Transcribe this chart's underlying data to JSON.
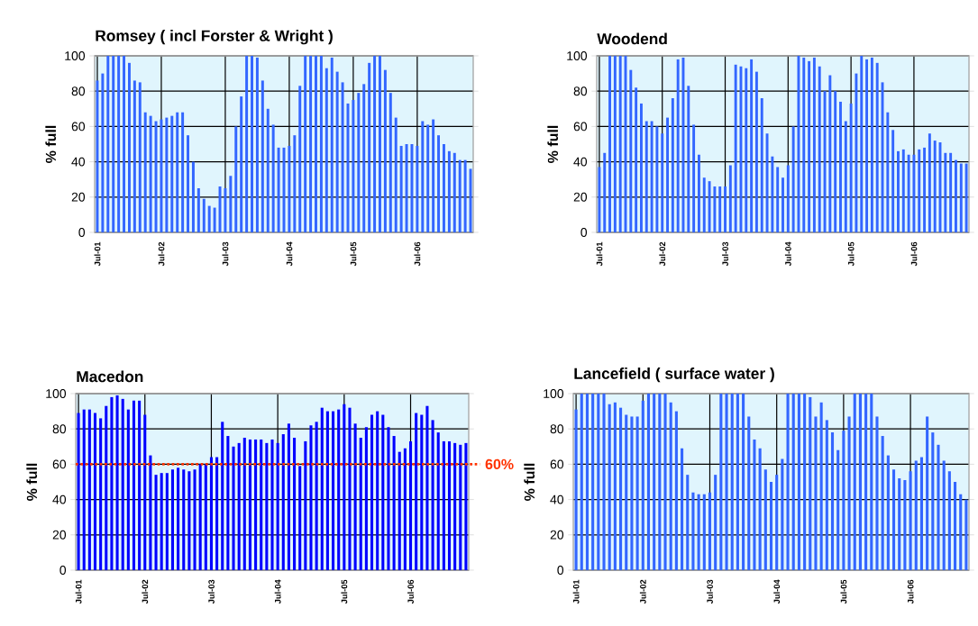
{
  "chart_data": [
    {
      "type": "bar",
      "title": "Romsey ( incl Forster & Wright )",
      "ylabel": "% full",
      "color": "#3366ff",
      "grid": true,
      "ylim": [
        0,
        100
      ],
      "yticks": [
        0,
        20,
        40,
        60,
        80,
        100
      ],
      "categories": [
        "Jul-01",
        null,
        null,
        null,
        null,
        null,
        null,
        null,
        null,
        null,
        null,
        null,
        "Jul-02",
        null,
        null,
        null,
        null,
        null,
        null,
        null,
        null,
        null,
        null,
        null,
        "Jul-03",
        null,
        null,
        null,
        null,
        null,
        null,
        null,
        null,
        null,
        null,
        null,
        "Jul-04",
        null,
        null,
        null,
        null,
        null,
        null,
        null,
        null,
        null,
        null,
        null,
        "Jul-05",
        null,
        null,
        null,
        null,
        null,
        null,
        null,
        null,
        null,
        null,
        null,
        "Jul-06",
        null,
        null,
        null,
        null,
        null,
        null,
        null,
        null,
        null,
        null
      ],
      "values": [
        86,
        90,
        100,
        100,
        100,
        100,
        96,
        86,
        85,
        68,
        66,
        63,
        64,
        65,
        66,
        68,
        68,
        55,
        40,
        25,
        19,
        15,
        14,
        26,
        25,
        32,
        60,
        77,
        100,
        100,
        99,
        86,
        70,
        61,
        48,
        48,
        49,
        55,
        83,
        100,
        100,
        100,
        100,
        93,
        99,
        91,
        85,
        73,
        75,
        79,
        84,
        96,
        100,
        100,
        92,
        79,
        65,
        49,
        50,
        50,
        49,
        63,
        61,
        64,
        55,
        50,
        46,
        45,
        41,
        41,
        36
      ]
    },
    {
      "type": "bar",
      "title": "Woodend",
      "ylabel": "% full",
      "color": "#3366ff",
      "grid": true,
      "ylim": [
        0,
        100
      ],
      "yticks": [
        0,
        20,
        40,
        60,
        80,
        100
      ],
      "categories": [
        "Jul-01",
        null,
        null,
        null,
        null,
        null,
        null,
        null,
        null,
        null,
        null,
        null,
        "Jul-02",
        null,
        null,
        null,
        null,
        null,
        null,
        null,
        null,
        null,
        null,
        null,
        "Jul-03",
        null,
        null,
        null,
        null,
        null,
        null,
        null,
        null,
        null,
        null,
        null,
        "Jul-04",
        null,
        null,
        null,
        null,
        null,
        null,
        null,
        null,
        null,
        null,
        null,
        "Jul-05",
        null,
        null,
        null,
        null,
        null,
        null,
        null,
        null,
        null,
        null,
        null,
        "Jul-06",
        null,
        null,
        null,
        null,
        null,
        null,
        null,
        null,
        null,
        null
      ],
      "values": [
        37,
        45,
        100,
        100,
        100,
        100,
        92,
        82,
        73,
        63,
        63,
        60,
        56,
        65,
        76,
        98,
        99,
        83,
        61,
        44,
        31,
        29,
        26,
        26,
        26,
        38,
        95,
        94,
        93,
        98,
        91,
        76,
        56,
        43,
        37,
        31,
        38,
        60,
        100,
        99,
        97,
        99,
        94,
        80,
        89,
        80,
        74,
        63,
        73,
        90,
        100,
        98,
        99,
        96,
        85,
        68,
        58,
        46,
        47,
        44,
        44,
        47,
        48,
        56,
        52,
        51,
        45,
        45,
        41,
        39,
        39
      ]
    },
    {
      "type": "bar",
      "title": "Macedon",
      "ylabel": "% full",
      "color": "#0000ff",
      "grid": true,
      "ylim": [
        0,
        100
      ],
      "yticks": [
        0,
        20,
        40,
        60,
        80,
        100
      ],
      "ref_lines": [
        {
          "axis": "y",
          "value": 60,
          "label": "60%",
          "color": "#ff3300",
          "line_style": "dotted"
        }
      ],
      "categories": [
        "Jul-01",
        null,
        null,
        null,
        null,
        null,
        null,
        null,
        null,
        null,
        null,
        null,
        "Jul-02",
        null,
        null,
        null,
        null,
        null,
        null,
        null,
        null,
        null,
        null,
        null,
        "Jul-03",
        null,
        null,
        null,
        null,
        null,
        null,
        null,
        null,
        null,
        null,
        null,
        "Jul-04",
        null,
        null,
        null,
        null,
        null,
        null,
        null,
        null,
        null,
        null,
        null,
        "Jul-05",
        null,
        null,
        null,
        null,
        null,
        null,
        null,
        null,
        null,
        null,
        null,
        "Jul-06",
        null,
        null,
        null,
        null,
        null,
        null,
        null,
        null,
        null,
        null
      ],
      "values": [
        89,
        91,
        91,
        89,
        86,
        93,
        98,
        99,
        97,
        91,
        96,
        96,
        88,
        65,
        54,
        55,
        55,
        57,
        58,
        57,
        56,
        57,
        60,
        60,
        64,
        64,
        84,
        76,
        70,
        72,
        75,
        74,
        74,
        74,
        72,
        74,
        72,
        77,
        83,
        75,
        59,
        73,
        82,
        84,
        92,
        90,
        90,
        91,
        94,
        92,
        83,
        75,
        81,
        88,
        90,
        88,
        81,
        76,
        67,
        69,
        73,
        89,
        88,
        93,
        85,
        78,
        73,
        73,
        72,
        71,
        72
      ]
    },
    {
      "type": "bar",
      "title": "Lancefield ( surface water )",
      "ylabel": "% full",
      "color": "#3366ff",
      "grid": true,
      "ylim": [
        0,
        100
      ],
      "yticks": [
        0,
        20,
        40,
        60,
        80,
        100
      ],
      "categories": [
        "Jul-01",
        null,
        null,
        null,
        null,
        null,
        null,
        null,
        null,
        null,
        null,
        null,
        "Jul-02",
        null,
        null,
        null,
        null,
        null,
        null,
        null,
        null,
        null,
        null,
        null,
        "Jul-03",
        null,
        null,
        null,
        null,
        null,
        null,
        null,
        null,
        null,
        null,
        null,
        "Jul-04",
        null,
        null,
        null,
        null,
        null,
        null,
        null,
        null,
        null,
        null,
        null,
        "Jul-05",
        null,
        null,
        null,
        null,
        null,
        null,
        null,
        null,
        null,
        null,
        null,
        "Jul-06",
        null,
        null,
        null,
        null,
        null,
        null,
        null,
        null,
        null,
        null
      ],
      "values": [
        91,
        100,
        100,
        100,
        100,
        100,
        94,
        95,
        92,
        88,
        87,
        87,
        96,
        100,
        100,
        100,
        100,
        95,
        90,
        69,
        54,
        44,
        43,
        43,
        44,
        54,
        100,
        100,
        100,
        100,
        100,
        87,
        74,
        69,
        57,
        50,
        54,
        63,
        100,
        100,
        100,
        100,
        98,
        87,
        95,
        85,
        78,
        68,
        79,
        87,
        100,
        100,
        100,
        100,
        87,
        76,
        65,
        57,
        52,
        51,
        56,
        62,
        64,
        87,
        78,
        71,
        62,
        56,
        50,
        43,
        40
      ]
    }
  ]
}
